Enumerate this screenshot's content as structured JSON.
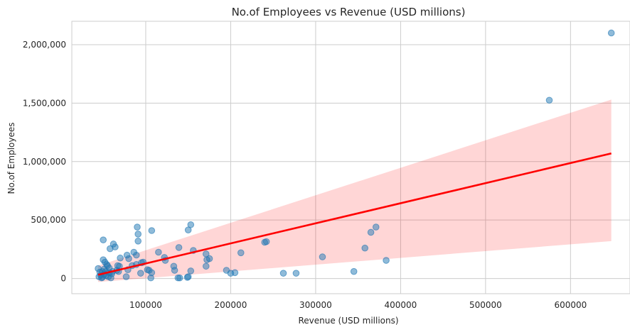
{
  "chart_data": {
    "type": "scatter",
    "title": "No.of Employees vs Revenue (USD millions)",
    "xlabel": "Revenue (USD millions)",
    "ylabel": "No.of Employees",
    "xlim": [
      13000,
      670000
    ],
    "ylim": [
      -130000,
      2200000
    ],
    "x_ticks": [
      100000,
      200000,
      300000,
      400000,
      500000,
      600000
    ],
    "x_tick_labels": [
      "100000",
      "200000",
      "300000",
      "400000",
      "500000",
      "600000"
    ],
    "y_ticks": [
      0,
      500000,
      1000000,
      1500000,
      2000000
    ],
    "y_tick_labels": [
      "0",
      "500,000",
      "1,000,000",
      "1,500,000",
      "2,000,000"
    ],
    "grid": true,
    "colors": {
      "points": "#1f77b4",
      "regression": "#ff0000",
      "grid": "#cccccc"
    },
    "series": [
      {
        "points": [
          [
            648000,
            2100000
          ],
          [
            575000,
            1525000
          ],
          [
            383000,
            155000
          ],
          [
            371000,
            440000
          ],
          [
            365000,
            395000
          ],
          [
            358000,
            260000
          ],
          [
            345000,
            60000
          ],
          [
            308000,
            185000
          ],
          [
            277000,
            45000
          ],
          [
            262000,
            45000
          ],
          [
            242000,
            315000
          ],
          [
            240000,
            310000
          ],
          [
            212000,
            220000
          ],
          [
            205000,
            50000
          ],
          [
            200000,
            45000
          ],
          [
            195000,
            70000
          ],
          [
            175000,
            170000
          ],
          [
            172000,
            160000
          ],
          [
            171000,
            210000
          ],
          [
            171000,
            105000
          ],
          [
            156000,
            240000
          ],
          [
            153000,
            460000
          ],
          [
            153000,
            65000
          ],
          [
            150000,
            415000
          ],
          [
            150000,
            15000
          ],
          [
            149000,
            10000
          ],
          [
            140000,
            5000
          ],
          [
            139000,
            265000
          ],
          [
            138000,
            5000
          ],
          [
            134000,
            70000
          ],
          [
            133000,
            105000
          ],
          [
            123000,
            155000
          ],
          [
            122000,
            180000
          ],
          [
            115000,
            225000
          ],
          [
            107000,
            410000
          ],
          [
            107000,
            50000
          ],
          [
            106000,
            5000
          ],
          [
            104000,
            70000
          ],
          [
            102000,
            75000
          ],
          [
            97000,
            140000
          ],
          [
            95000,
            135000
          ],
          [
            94000,
            45000
          ],
          [
            91000,
            380000
          ],
          [
            91000,
            320000
          ],
          [
            90000,
            440000
          ],
          [
            89000,
            120000
          ],
          [
            89000,
            200000
          ],
          [
            86000,
            225000
          ],
          [
            84000,
            110000
          ],
          [
            80000,
            170000
          ],
          [
            79000,
            75000
          ],
          [
            78000,
            200000
          ],
          [
            77000,
            15000
          ],
          [
            70000,
            175000
          ],
          [
            69000,
            105000
          ],
          [
            68000,
            60000
          ],
          [
            67000,
            110000
          ],
          [
            66000,
            70000
          ],
          [
            64000,
            270000
          ],
          [
            62000,
            295000
          ],
          [
            61000,
            60000
          ],
          [
            60000,
            40000
          ],
          [
            59000,
            5000
          ],
          [
            58000,
            255000
          ],
          [
            57000,
            90000
          ],
          [
            57000,
            50000
          ],
          [
            56000,
            15000
          ],
          [
            55000,
            110000
          ],
          [
            54000,
            120000
          ],
          [
            53000,
            60000
          ],
          [
            53000,
            25000
          ],
          [
            52000,
            140000
          ],
          [
            51000,
            80000
          ],
          [
            51000,
            35000
          ],
          [
            50000,
            330000
          ],
          [
            50000,
            160000
          ],
          [
            49000,
            60000
          ],
          [
            49000,
            10000
          ],
          [
            48000,
            5000
          ],
          [
            47000,
            30000
          ],
          [
            46000,
            55000
          ],
          [
            45000,
            15000
          ],
          [
            44000,
            85000
          ]
        ]
      }
    ],
    "regression": {
      "x": [
        44000,
        648000
      ],
      "y": [
        32000,
        1070000
      ],
      "ci_upper": [
        110000,
        1530000
      ],
      "ci_lower": [
        -30000,
        320000
      ]
    }
  }
}
